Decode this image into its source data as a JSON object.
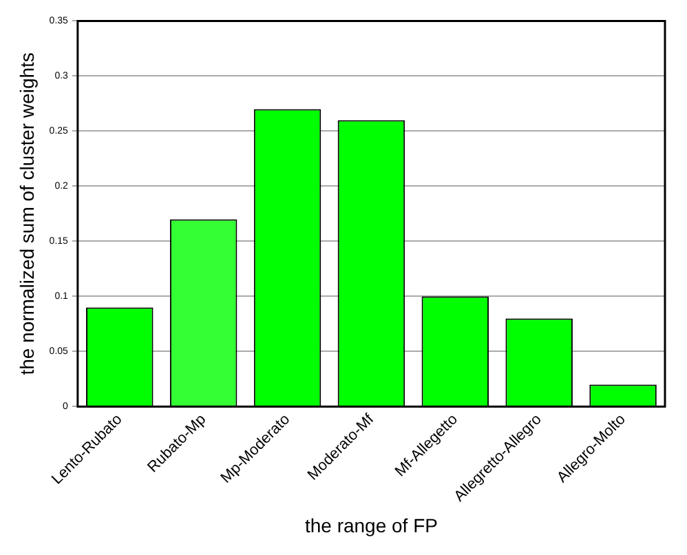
{
  "chart_data": {
    "type": "bar",
    "xlabel": "the range of FP",
    "ylabel": "the normalized sum of cluster weights",
    "categories": [
      "Lento-Rubato",
      "Rubato-Mp",
      "Mp-Moderato",
      "Moderato-Mf",
      "Mf-Allegetto",
      "Allegretto-Allegro",
      "Allegro-Molto"
    ],
    "values": [
      0.09,
      0.17,
      0.27,
      0.26,
      0.1,
      0.08,
      0.02
    ],
    "colors": [
      "#00ff00",
      "#33ff33",
      "#00ff00",
      "#00ff00",
      "#00ff00",
      "#00ff00",
      "#00ff00"
    ],
    "ylim": [
      0,
      0.35
    ],
    "yticks": [
      0,
      0.05,
      0.1,
      0.15,
      0.2,
      0.25,
      0.3,
      0.35
    ],
    "grid": "y"
  }
}
